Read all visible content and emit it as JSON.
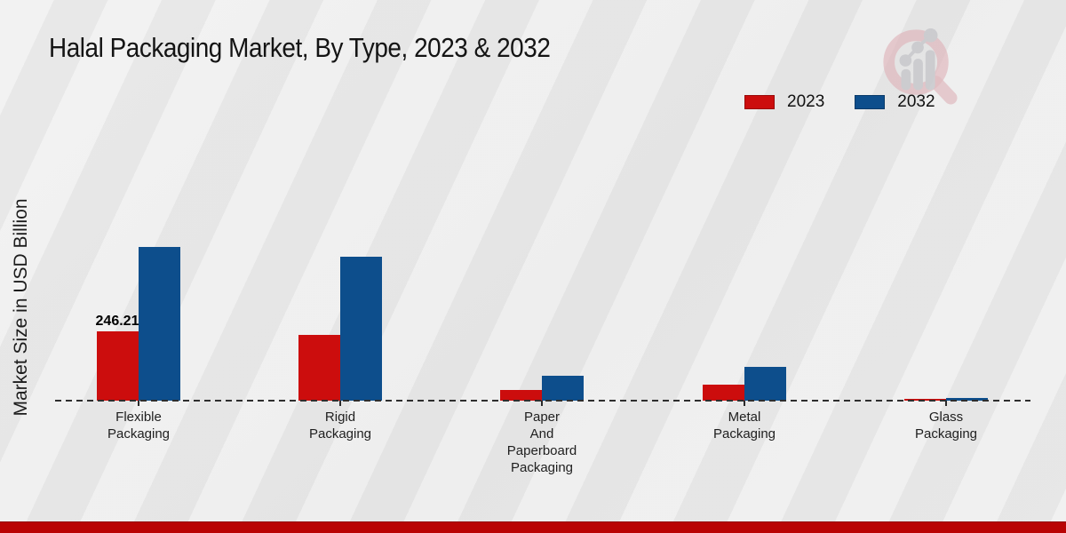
{
  "page": {
    "title": "Halal Packaging Market, By Type, 2023 & 2032",
    "y_axis_label": "Market Size in USD Billion"
  },
  "legend": {
    "items": [
      {
        "label": "2023",
        "color": "#cc0d0d"
      },
      {
        "label": "2032",
        "color": "#0d4e8c"
      }
    ]
  },
  "colors": {
    "bar_red": "#cc0d0d",
    "bar_blue": "#0d4e8c",
    "footer_red": "#b90404",
    "line_color": "#2e2e2e",
    "logo_pink": "#ddafb6",
    "logo_gray": "#c6c6ca"
  },
  "branding": {
    "logo_icon": "magnifier-bar-chart-logo"
  },
  "chart_data": {
    "type": "bar",
    "title": "Halal Packaging Market, By Type, 2023 & 2032",
    "xlabel": "",
    "ylabel": "Market Size in USD Billion",
    "unit": "USD Billion",
    "categories": [
      "Flexible Packaging",
      "Rigid Packaging",
      "Paper And Paperboard Packaging",
      "Metal Packaging",
      "Glass Packaging"
    ],
    "category_label_lines": [
      [
        "Flexible",
        "Packaging"
      ],
      [
        "Rigid",
        "Packaging"
      ],
      [
        "Paper",
        "And",
        "Paperboard",
        "Packaging"
      ],
      [
        "Metal",
        "Packaging"
      ],
      [
        "Glass",
        "Packaging"
      ]
    ],
    "series": [
      {
        "name": "2023",
        "color": "#cc0d0d",
        "values": [
          246.21,
          234,
          38,
          57,
          6
        ]
      },
      {
        "name": "2032",
        "color": "#0d4e8c",
        "values": [
          546,
          511,
          88,
          120,
          9.5
        ]
      }
    ],
    "data_labels": [
      {
        "series": "2023",
        "category_index": 0,
        "text": "246.21"
      }
    ],
    "ylim": [
      0,
      560
    ],
    "grid": false,
    "y_ticks_visible": false,
    "baseline_style": "dashed",
    "legend_position": "top-right"
  }
}
